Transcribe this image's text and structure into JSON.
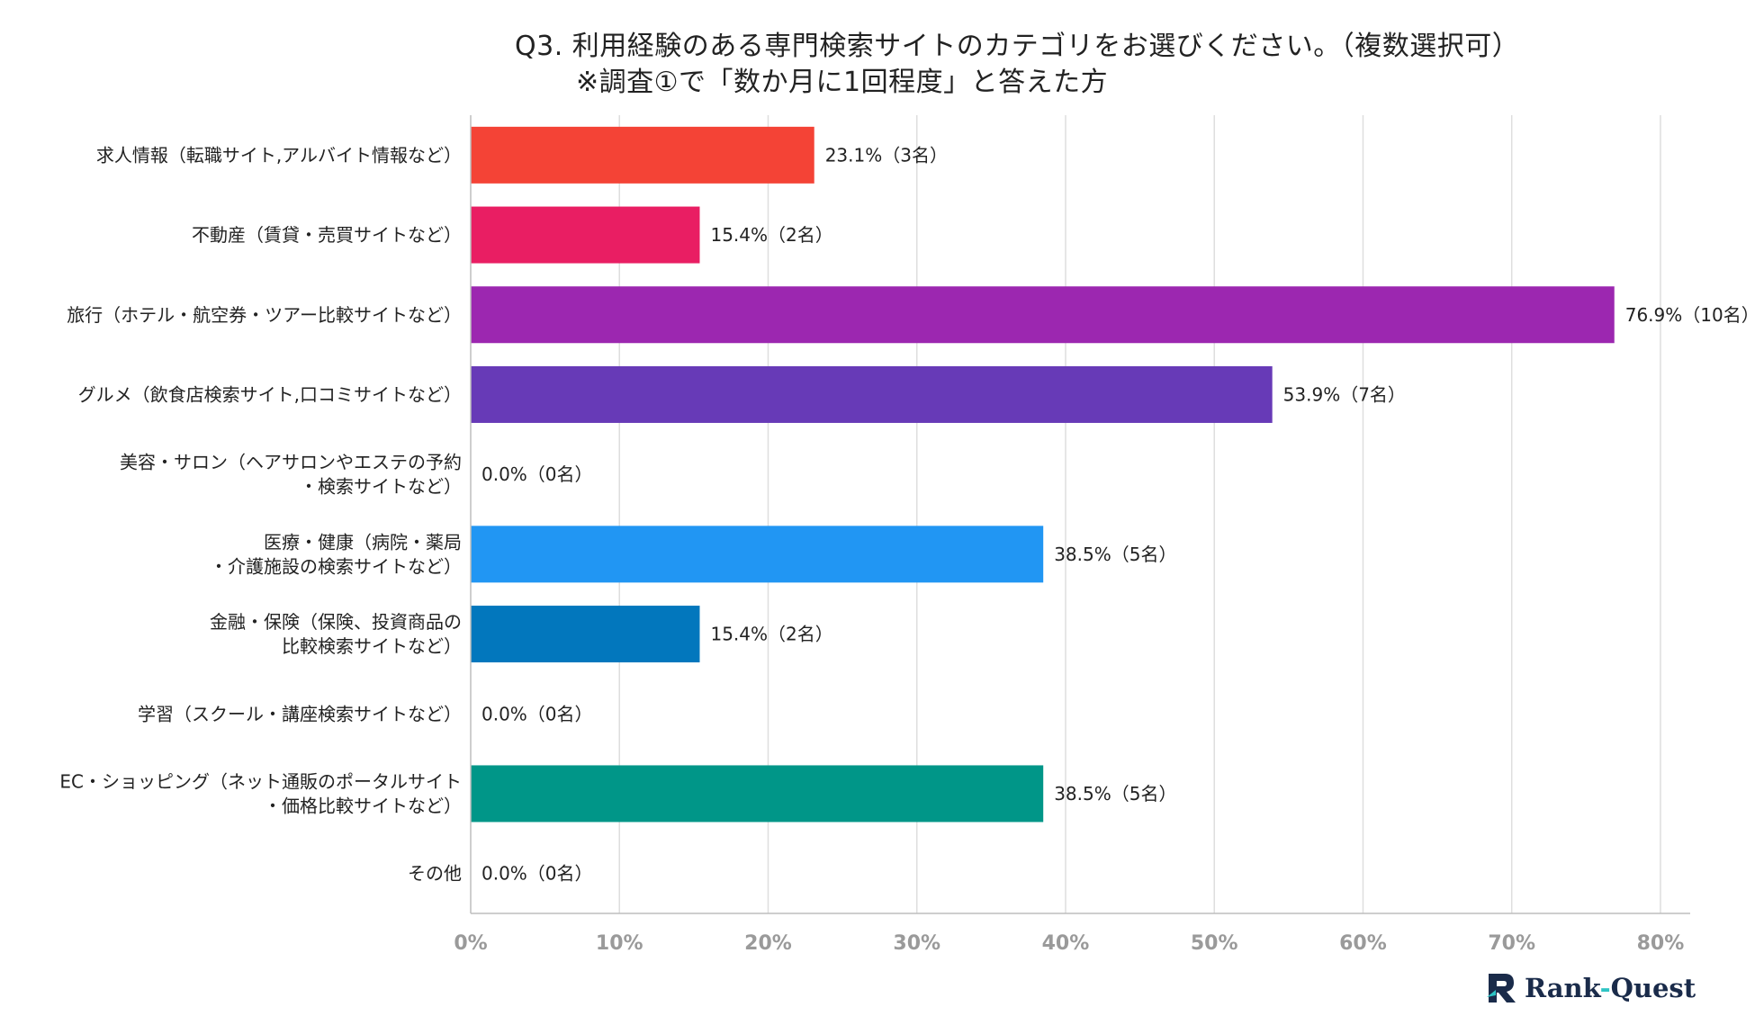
{
  "title": {
    "line1": "Q3. 利用経験のある専門検索サイトのカテゴリをお選びください。（複数選択可）",
    "line2": "※調査①で「数か月に1回程度」と答えた方"
  },
  "logo": {
    "brand": "Rank-Quest",
    "brand_part1": "Rank",
    "brand_dash": "-",
    "brand_part2": "Quest"
  },
  "chart_data": {
    "type": "bar",
    "orientation": "horizontal",
    "title": "Q3. 利用経験のある専門検索サイトのカテゴリをお選びください。（複数選択可）",
    "subtitle": "※調査①で「数か月に1回程度」と答えた方",
    "xlabel": "",
    "ylabel": "",
    "xlim": [
      0,
      82
    ],
    "grid": true,
    "legend": "none",
    "ticks": [
      {
        "value": 0,
        "label": "0%"
      },
      {
        "value": 10,
        "label": "10%"
      },
      {
        "value": 20,
        "label": "20%"
      },
      {
        "value": 30,
        "label": "30%"
      },
      {
        "value": 40,
        "label": "40%"
      },
      {
        "value": 50,
        "label": "50%"
      },
      {
        "value": 60,
        "label": "60%"
      },
      {
        "value": 70,
        "label": "70%"
      },
      {
        "value": 80,
        "label": "80%"
      }
    ],
    "categories": [
      {
        "lines": [
          "求人情報（転職サイト,アルバイト情報など）"
        ],
        "value": 23.1,
        "label": "23.1%（3名）",
        "color": "#f44336"
      },
      {
        "lines": [
          "不動産（賃貸・売買サイトなど）"
        ],
        "value": 15.4,
        "label": "15.4%（2名）",
        "color": "#e91e63"
      },
      {
        "lines": [
          "旅行（ホテル・航空券・ツアー比較サイトなど）"
        ],
        "value": 76.9,
        "label": "76.9%（10名）",
        "color": "#9c27b0"
      },
      {
        "lines": [
          "グルメ（飲食店検索サイト,口コミサイトなど）"
        ],
        "value": 53.9,
        "label": "53.9%（7名）",
        "color": "#673ab7"
      },
      {
        "lines": [
          "美容・サロン（ヘアサロンやエステの予約",
          "・検索サイトなど）"
        ],
        "value": 0.0,
        "label": "0.0%（0名）",
        "color": "#3f51b5"
      },
      {
        "lines": [
          "医療・健康（病院・薬局",
          "・介護施設の検索サイトなど）"
        ],
        "value": 38.5,
        "label": "38.5%（5名）",
        "color": "#2196f3"
      },
      {
        "lines": [
          "金融・保険（保険、投資商品の",
          "比較検索サイトなど）"
        ],
        "value": 15.4,
        "label": "15.4%（2名）",
        "color": "#0277bd"
      },
      {
        "lines": [
          "学習（スクール・講座検索サイトなど）"
        ],
        "value": 0.0,
        "label": "0.0%（0名）",
        "color": "#00897b"
      },
      {
        "lines": [
          "EC・ショッピング（ネット通販のポータルサイト",
          "・価格比較サイトなど）"
        ],
        "value": 38.5,
        "label": "38.5%（5名）",
        "color": "#009688"
      },
      {
        "lines": [
          "その他"
        ],
        "value": 0.0,
        "label": "0.0%（0名）",
        "color": "#4caf50"
      }
    ]
  }
}
